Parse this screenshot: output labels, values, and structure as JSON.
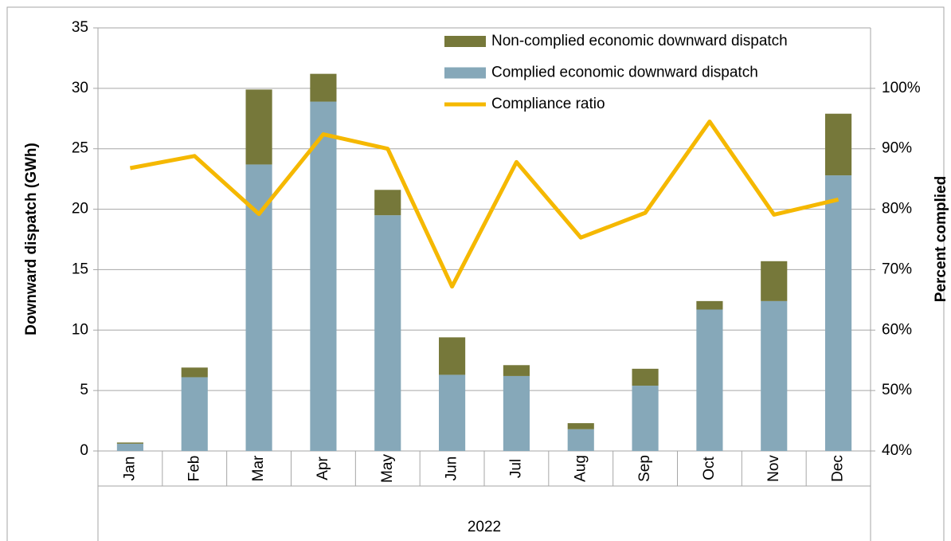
{
  "chart_data": {
    "type": "bar",
    "categories": [
      "Jan",
      "Feb",
      "Mar",
      "Apr",
      "May",
      "Jun",
      "Jul",
      "Aug",
      "Sep",
      "Oct",
      "Nov",
      "Dec"
    ],
    "category_group": "2022",
    "y_label": "Downward dispatch (GWh)",
    "y2_label": "Percent complied",
    "stacked": true,
    "series": [
      {
        "name": "Non-complied economic downward dispatch",
        "type": "bar",
        "color": "#76783a",
        "values": [
          0.1,
          0.8,
          6.2,
          2.3,
          2.1,
          3.1,
          0.9,
          0.5,
          1.4,
          0.7,
          3.3,
          5.1
        ]
      },
      {
        "name": "Complied economic downward dispatch",
        "type": "bar",
        "color": "#86a8b9",
        "values": [
          0.6,
          6.1,
          23.7,
          28.9,
          19.5,
          6.3,
          6.2,
          1.8,
          5.4,
          11.7,
          12.4,
          22.8
        ]
      },
      {
        "name": "Compliance ratio",
        "type": "line",
        "axis": "y2",
        "color": "#f5b800",
        "values": [
          86.8,
          88.8,
          79.2,
          92.4,
          90.0,
          67.2,
          87.8,
          75.3,
          79.4,
          94.5,
          79.1,
          81.6
        ]
      }
    ],
    "ylim": [
      0,
      35
    ],
    "yticks": [
      0,
      5,
      10,
      15,
      20,
      25,
      30,
      35
    ],
    "y2lim": [
      40,
      110
    ],
    "y2ticks": [
      {
        "value": 40,
        "label": "40%"
      },
      {
        "value": 50,
        "label": "50%"
      },
      {
        "value": 60,
        "label": "60%"
      },
      {
        "value": 70,
        "label": "70%"
      },
      {
        "value": 80,
        "label": "80%"
      },
      {
        "value": 90,
        "label": "90%"
      },
      {
        "value": 100,
        "label": "100%"
      }
    ],
    "grid": true,
    "legend": "top"
  }
}
